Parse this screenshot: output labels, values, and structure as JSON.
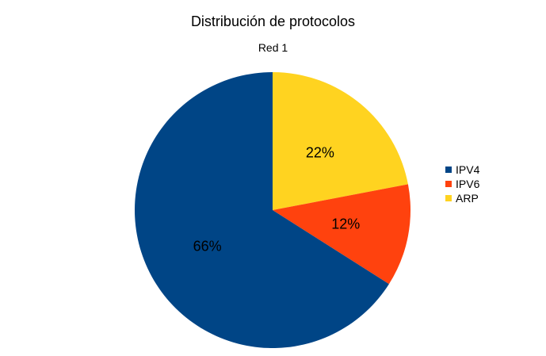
{
  "chart_data": {
    "type": "pie",
    "title": "Distribución de protocolos",
    "subtitle": "Red 1",
    "categories": [
      "IPV4",
      "IPV6",
      "ARP"
    ],
    "values": [
      66,
      12,
      22
    ],
    "data_labels": [
      "66%",
      "12%",
      "22%"
    ],
    "colors": [
      "#004586",
      "#ff420e",
      "#ffd320"
    ],
    "legend_position": "right"
  }
}
